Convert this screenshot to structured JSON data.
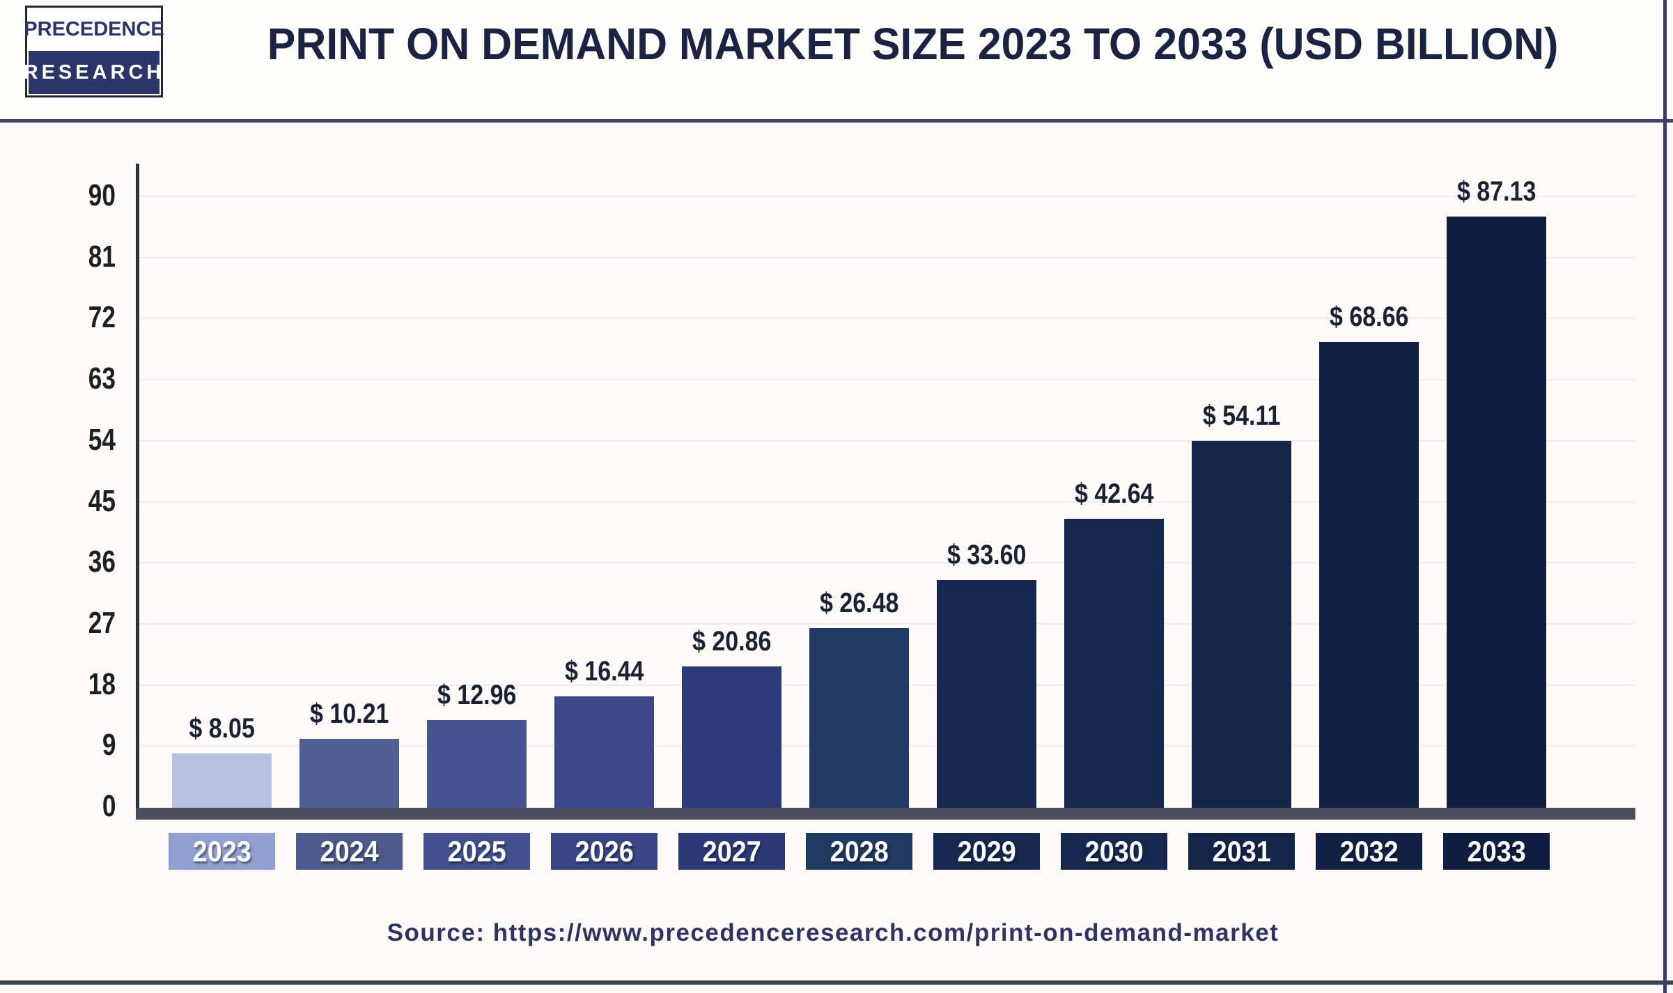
{
  "header": {
    "logo": {
      "line1": "PRECEDENCE",
      "line2": "RESEARCH"
    },
    "title": "PRINT ON DEMAND MARKET SIZE 2023 TO 2033 (USD BILLION)"
  },
  "source": {
    "text": "Source: https://www.precedenceresearch.com/print-on-demand-market"
  },
  "colors": {
    "header_divider": "#454073",
    "frame_border": "#3e3b6b",
    "baseline": "#494e5a",
    "title_text": "#1b2342",
    "logo_navy": "#2c3569",
    "source_text": "#2e3462"
  },
  "chart_data": {
    "type": "bar",
    "title": "PRINT ON DEMAND MARKET SIZE 2023 TO 2033 (USD BILLION)",
    "xlabel": "",
    "ylabel": "",
    "categories": [
      "2023",
      "2024",
      "2025",
      "2026",
      "2027",
      "2028",
      "2029",
      "2030",
      "2031",
      "2032",
      "2033"
    ],
    "values": [
      8.05,
      10.21,
      12.96,
      16.44,
      20.86,
      26.48,
      33.6,
      42.64,
      54.11,
      68.66,
      87.13
    ],
    "value_labels": [
      "$ 8.05",
      "$ 10.21",
      "$ 12.96",
      "$ 16.44",
      "$ 20.86",
      "$ 26.48",
      "$ 33.60",
      "$ 42.64",
      "$ 54.11",
      "$ 68.66",
      "$ 87.13"
    ],
    "unit": "USD Billion",
    "ylim": [
      0,
      90
    ],
    "yticks": [
      0,
      9,
      18,
      27,
      36,
      45,
      54,
      63,
      72,
      81,
      90
    ],
    "grid": "horizontal-faint",
    "legend": "none",
    "bar_colors": [
      "#b7c1e2",
      "#4f5e93",
      "#455390",
      "#3a4789",
      "#2e3a79",
      "#203a63",
      "#16284f",
      "#16284e",
      "#14254a",
      "#122143",
      "#101d3f"
    ],
    "tick_box_colors": [
      "#92a0d1",
      "#4d5a8c",
      "#42508c",
      "#384484",
      "#2d3976",
      "#1f3a62",
      "#16284e",
      "#16284e",
      "#14254a",
      "#122143",
      "#101d3f"
    ]
  }
}
